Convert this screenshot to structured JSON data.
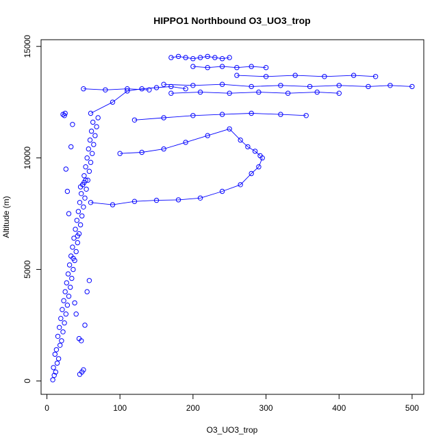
{
  "chart_data": {
    "type": "scatter",
    "title": "HIPPO1 Northbound O3_UO3_trop",
    "xlabel": "O3_UO3_trop",
    "ylabel": "Altitude (m)",
    "xlim": [
      -8,
      516
    ],
    "ylim": [
      -600,
      15300
    ],
    "xticks": [
      0,
      100,
      200,
      300,
      400,
      500
    ],
    "yticks": [
      0,
      5000,
      10000,
      15000
    ],
    "xtick_labels": [
      "0",
      "100",
      "200",
      "300",
      "400",
      "500"
    ],
    "ytick_labels": [
      "0",
      "5000",
      "10000",
      "15000"
    ],
    "grid": false,
    "legend": "none",
    "color": "#0000ff",
    "series": [
      {
        "style": "points",
        "x": [
          8,
          10,
          12,
          9,
          14,
          16,
          11,
          13,
          18,
          20,
          15,
          22,
          17,
          24,
          19,
          26,
          21,
          28,
          23,
          30,
          25,
          32,
          27,
          34,
          29,
          36,
          31,
          38,
          33,
          40,
          35,
          42,
          37,
          44,
          39,
          46,
          41,
          48,
          43,
          50,
          45,
          52,
          47,
          54,
          49,
          56,
          51,
          58,
          53,
          60,
          55,
          62,
          57,
          64,
          59,
          66,
          61,
          68,
          63,
          70,
          45,
          48,
          50,
          47,
          44,
          52,
          40,
          38,
          55,
          58,
          36,
          42,
          30,
          28,
          26,
          33,
          35,
          25,
          24,
          22,
          46,
          49,
          51,
          53
        ],
        "y": [
          50,
          250,
          400,
          600,
          800,
          1000,
          1200,
          1400,
          1600,
          1800,
          2000,
          2200,
          2400,
          2600,
          2800,
          3000,
          3200,
          3400,
          3600,
          3800,
          4000,
          4200,
          4400,
          4600,
          4800,
          5000,
          5200,
          5400,
          5600,
          5800,
          6000,
          6200,
          6400,
          6600,
          6800,
          7000,
          7200,
          7400,
          7600,
          7800,
          8000,
          8200,
          8400,
          8600,
          8800,
          9000,
          9200,
          9400,
          9600,
          9800,
          10000,
          10200,
          10400,
          10600,
          10800,
          11000,
          11200,
          11400,
          11600,
          11800,
          300,
          400,
          500,
          1800,
          1900,
          2500,
          3000,
          3500,
          4000,
          4500,
          5500,
          6500,
          7500,
          8500,
          9500,
          10500,
          11500,
          12000,
          11900,
          11950,
          8700,
          8800,
          8900,
          9000
        ]
      },
      {
        "style": "line",
        "x": [
          60,
          90,
          120,
          150,
          180,
          210,
          240,
          265,
          280,
          290,
          295
        ],
        "y": [
          8000,
          7900,
          8050,
          8100,
          8120,
          8200,
          8500,
          8800,
          9300,
          9600,
          10000
        ]
      },
      {
        "style": "line",
        "x": [
          100,
          130,
          160,
          190,
          220,
          250,
          265,
          275,
          285,
          292
        ],
        "y": [
          10200,
          10250,
          10400,
          10700,
          11000,
          11300,
          10800,
          10500,
          10300,
          10100
        ]
      },
      {
        "style": "line",
        "x": [
          120,
          160,
          200,
          240,
          280,
          320,
          355
        ],
        "y": [
          11700,
          11800,
          11900,
          11950,
          12000,
          11950,
          11900
        ]
      },
      {
        "style": "line",
        "x": [
          60,
          90,
          110,
          130,
          150,
          170,
          190
        ],
        "y": [
          12000,
          12500,
          13000,
          13100,
          13150,
          13200,
          13100
        ]
      },
      {
        "style": "line",
        "x": [
          170,
          180,
          190,
          200,
          210,
          220,
          230,
          240,
          250
        ],
        "y": [
          14500,
          14550,
          14500,
          14450,
          14500,
          14550,
          14500,
          14450,
          14500
        ]
      },
      {
        "style": "line",
        "x": [
          200,
          220,
          240,
          260,
          280,
          300
        ],
        "y": [
          14100,
          14050,
          14100,
          14050,
          14100,
          14050
        ]
      },
      {
        "style": "line",
        "x": [
          260,
          300,
          340,
          380,
          420,
          450
        ],
        "y": [
          13700,
          13650,
          13700,
          13650,
          13700,
          13650
        ]
      },
      {
        "style": "line",
        "x": [
          160,
          200,
          240,
          280,
          320,
          360,
          400,
          440,
          470,
          500
        ],
        "y": [
          13300,
          13250,
          13300,
          13200,
          13250,
          13200,
          13250,
          13200,
          13250,
          13200
        ]
      },
      {
        "style": "line",
        "x": [
          170,
          210,
          250,
          290,
          330,
          370,
          400
        ],
        "y": [
          12900,
          12950,
          12900,
          12950,
          12900,
          12950,
          12900
        ]
      },
      {
        "style": "line",
        "x": [
          50,
          80,
          110,
          140
        ],
        "y": [
          13100,
          13050,
          13100,
          13050
        ]
      }
    ]
  }
}
